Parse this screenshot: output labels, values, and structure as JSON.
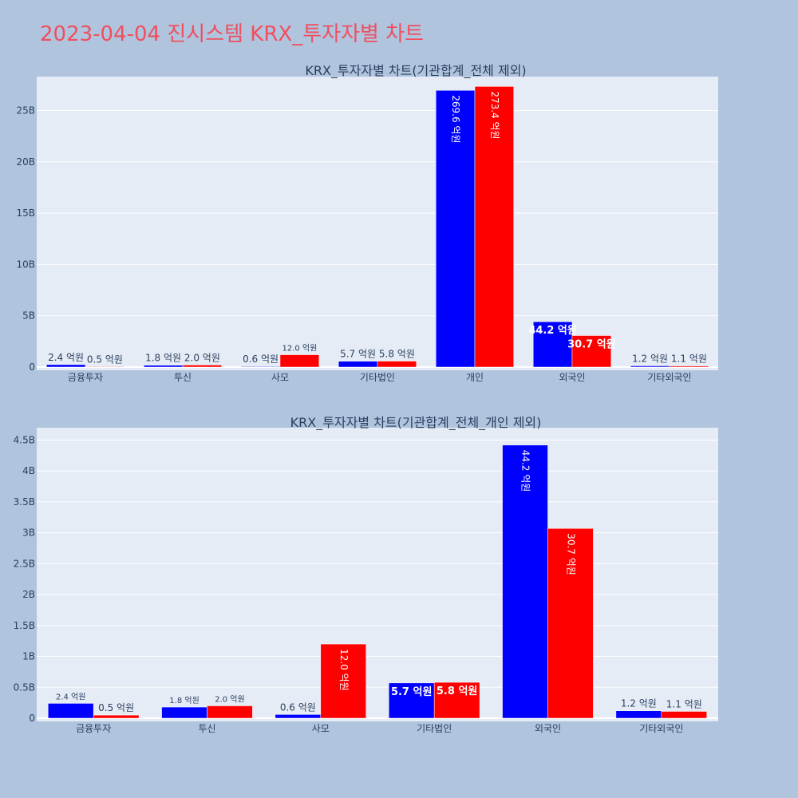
{
  "page_title": "2023-04-04 진시스템 KRX_투자자별 차트",
  "colors": {
    "series_a": "#0000ff",
    "series_b": "#ff0000",
    "plot_bg": "#e5ecf6",
    "page_bg": "#b0c4de",
    "title": "#ef4f5f"
  },
  "chart_data": [
    {
      "type": "bar",
      "title": "KRX_투자자별 차트(기관합계_전체 제외)",
      "categories": [
        "금융투자",
        "투신",
        "사모",
        "기타법인",
        "개인",
        "외국인",
        "기타외국인"
      ],
      "series": [
        {
          "values": [
            240000000,
            180000000,
            60000000,
            570000000,
            26960000000,
            4420000000,
            120000000
          ],
          "labels": [
            "2.4 억원",
            "1.8 억원",
            "0.6 억원",
            "5.7 억원",
            "269.6 억원",
            "44.2 억원",
            "1.2 억원"
          ]
        },
        {
          "values": [
            50000000,
            200000000,
            1200000000,
            580000000,
            27340000000,
            3070000000,
            110000000
          ],
          "labels": [
            "0.5 억원",
            "2.0 억원",
            "12.0 억원",
            "5.8 억원",
            "273.4 억원",
            "30.7 억원",
            "1.1 억원"
          ]
        }
      ],
      "ylim": [
        0,
        28300000000
      ],
      "yticks": [
        0,
        5000000000,
        10000000000,
        15000000000,
        20000000000,
        25000000000
      ],
      "ytick_labels": [
        "0",
        "5B",
        "10B",
        "15B",
        "20B",
        "25B"
      ],
      "grid": true
    },
    {
      "type": "bar",
      "title": "KRX_투자자별 차트(기관합계_전체_개인 제외)",
      "categories": [
        "금융투자",
        "투신",
        "사모",
        "기타법인",
        "외국인",
        "기타외국인"
      ],
      "series": [
        {
          "values": [
            240000000,
            180000000,
            60000000,
            570000000,
            4420000000,
            120000000
          ],
          "labels": [
            "2.4 억원",
            "1.8 억원",
            "0.6 억원",
            "5.7 억원",
            "44.2 억원",
            "1.2 억원"
          ]
        },
        {
          "values": [
            50000000,
            200000000,
            1200000000,
            580000000,
            3070000000,
            110000000
          ],
          "labels": [
            "0.5 억원",
            "2.0 억원",
            "12.0 억원",
            "5.8 억원",
            "30.7 억원",
            "1.1 억원"
          ]
        }
      ],
      "ylim": [
        0,
        4700000000
      ],
      "yticks": [
        0,
        500000000,
        1000000000,
        1500000000,
        2000000000,
        2500000000,
        3000000000,
        3500000000,
        4000000000,
        4500000000
      ],
      "ytick_labels": [
        "0",
        "0.5B",
        "1B",
        "1.5B",
        "2B",
        "2.5B",
        "3B",
        "3.5B",
        "4B",
        "4.5B"
      ],
      "grid": true
    }
  ]
}
